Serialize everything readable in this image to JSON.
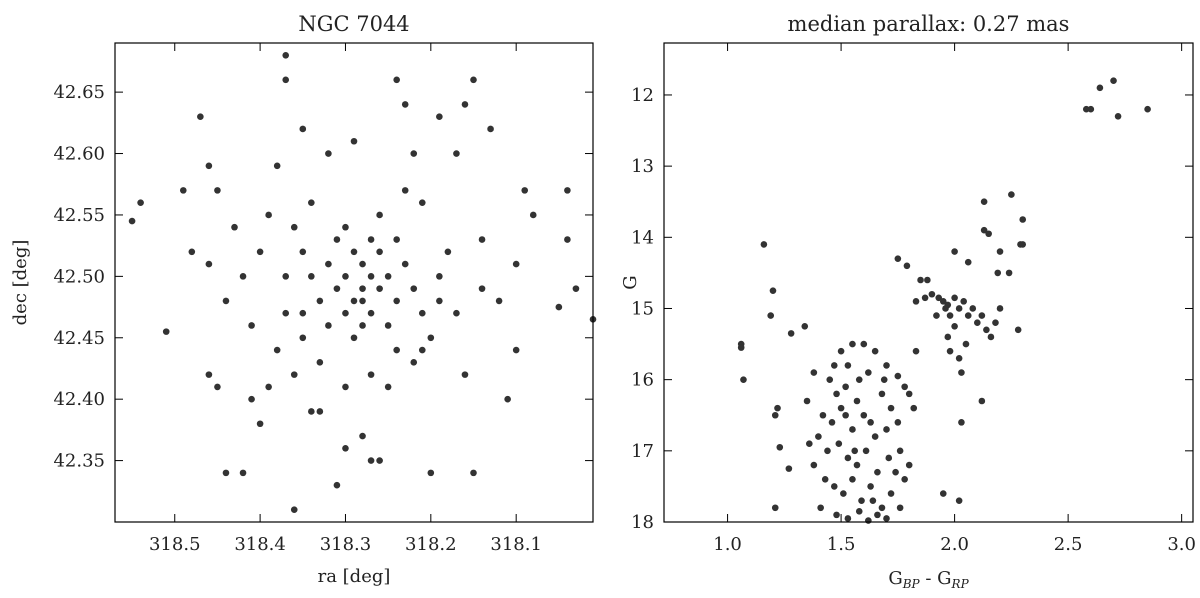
{
  "chart_data": [
    {
      "type": "scatter",
      "title": "NGC 7044",
      "xlabel": "ra [deg]",
      "ylabel": "dec [deg]",
      "color": "#333333",
      "xlim": [
        318.57,
        318.01
      ],
      "ylim": [
        42.3,
        42.69
      ],
      "xticks": [
        318.5,
        318.4,
        318.3,
        318.2,
        318.1
      ],
      "yticks": [
        42.35,
        {
          "value": 42.4,
          "label": "42.40"
        },
        42.45,
        {
          "value": 42.5,
          "label": "42.50"
        },
        42.55,
        {
          "value": 42.6,
          "label": "42.60"
        },
        42.65
      ],
      "x": [
        318.28,
        318.27,
        318.29,
        318.3,
        318.26,
        318.28,
        318.31,
        318.27,
        318.25,
        318.29,
        318.32,
        318.3,
        318.26,
        318.24,
        318.33,
        318.28,
        318.27,
        318.31,
        318.23,
        318.34,
        318.22,
        318.29,
        318.25,
        318.3,
        318.35,
        318.21,
        318.26,
        318.32,
        318.24,
        318.28,
        318.54,
        318.55,
        318.51,
        318.47,
        318.46,
        318.49,
        318.48,
        318.45,
        318.46,
        318.44,
        318.43,
        318.46,
        318.45,
        318.44,
        318.42,
        318.41,
        318.4,
        318.39,
        318.38,
        318.37,
        318.37,
        318.36,
        318.35,
        318.34,
        318.33,
        318.32,
        318.31,
        318.3,
        318.29,
        318.28,
        318.27,
        318.26,
        318.25,
        318.24,
        318.23,
        318.22,
        318.21,
        318.2,
        318.19,
        318.18,
        318.17,
        318.16,
        318.15,
        318.15,
        318.14,
        318.13,
        318.12,
        318.11,
        318.1,
        318.1,
        318.09,
        318.08,
        318.04,
        318.04,
        318.05,
        318.03,
        318.01,
        318.38,
        318.37,
        318.36,
        318.35,
        318.33,
        318.22,
        318.2,
        318.19,
        318.17,
        318.16,
        318.14,
        318.4,
        318.41,
        318.39,
        318.21,
        318.23,
        318.34,
        318.36,
        318.27,
        318.3,
        318.24,
        318.42,
        318.35,
        318.19,
        318.37
      ],
      "values": [
        42.49,
        42.5,
        42.48,
        42.5,
        42.49,
        42.51,
        42.49,
        42.47,
        42.5,
        42.52,
        42.51,
        42.47,
        42.52,
        42.48,
        42.48,
        42.46,
        42.53,
        42.53,
        42.51,
        42.5,
        42.49,
        42.45,
        42.46,
        42.54,
        42.52,
        42.47,
        42.55,
        42.46,
        42.53,
        42.48,
        42.56,
        42.545,
        42.455,
        42.63,
        42.59,
        42.57,
        42.52,
        42.57,
        42.51,
        42.48,
        42.54,
        42.42,
        42.41,
        42.34,
        42.34,
        42.4,
        42.38,
        42.55,
        42.59,
        42.68,
        42.66,
        42.31,
        42.62,
        42.39,
        42.39,
        42.6,
        42.33,
        42.36,
        42.61,
        42.37,
        42.35,
        42.35,
        42.41,
        42.66,
        42.64,
        42.6,
        42.44,
        42.34,
        42.63,
        42.52,
        42.6,
        42.64,
        42.66,
        42.34,
        42.53,
        42.62,
        42.48,
        42.4,
        42.51,
        42.44,
        42.57,
        42.55,
        42.57,
        42.53,
        42.475,
        42.49,
        42.465,
        42.44,
        42.47,
        42.42,
        42.45,
        42.43,
        42.43,
        42.45,
        42.48,
        42.47,
        42.42,
        42.49,
        42.52,
        42.46,
        42.41,
        42.56,
        42.57,
        42.56,
        42.54,
        42.42,
        42.41,
        42.44,
        42.5,
        42.47,
        42.5,
        42.5
      ]
    },
    {
      "type": "scatter",
      "title": "median parallax: 0.27 mas",
      "xlabel": [
        "G",
        "BP",
        " - G",
        "RP"
      ],
      "ylabel": "G",
      "color": "#333333",
      "xlim": [
        0.72,
        3.05
      ],
      "ylim": [
        18,
        11.27
      ],
      "xticks": [
        {
          "value": 1,
          "label": "1.0"
        },
        1.5,
        {
          "value": 2,
          "label": "2.0"
        },
        2.5,
        {
          "value": 3,
          "label": "3.0"
        }
      ],
      "yticks": [
        12,
        13,
        14,
        15,
        16,
        17,
        18
      ],
      "x": [
        2.58,
        2.6,
        2.64,
        2.7,
        2.72,
        2.85,
        2.13,
        2.25,
        2.3,
        2.13,
        2.15,
        2.29,
        2.3,
        2.2,
        2.0,
        2.06,
        2.19,
        2.24,
        1.75,
        1.79,
        1.85,
        1.88,
        1.9,
        1.93,
        1.95,
        1.97,
        2.0,
        2.02,
        2.04,
        2.06,
        1.98,
        1.96,
        2.08,
        2.1,
        2.12,
        2.14,
        2.16,
        1.92,
        2.0,
        2.05,
        2.18,
        2.2,
        2.28,
        1.83,
        1.87,
        2.02,
        2.03,
        1.97,
        1.98,
        2.12,
        2.03,
        1.95,
        2.02,
        1.83,
        1.8,
        1.82,
        1.06,
        1.06,
        1.07,
        1.16,
        1.2,
        1.19,
        1.28,
        1.34,
        1.22,
        1.21,
        1.23,
        1.27,
        1.21,
        1.5,
        1.55,
        1.6,
        1.65,
        1.7,
        1.75,
        1.78,
        1.45,
        1.48,
        1.52,
        1.58,
        1.62,
        1.68,
        1.72,
        1.42,
        1.46,
        1.5,
        1.55,
        1.6,
        1.65,
        1.7,
        1.75,
        1.4,
        1.44,
        1.49,
        1.53,
        1.57,
        1.61,
        1.66,
        1.71,
        1.76,
        1.78,
        1.43,
        1.47,
        1.51,
        1.55,
        1.59,
        1.63,
        1.68,
        1.72,
        1.76,
        1.48,
        1.53,
        1.58,
        1.62,
        1.66,
        1.7,
        1.38,
        1.36,
        1.35,
        1.38,
        1.47,
        1.53,
        1.57,
        1.63,
        1.69,
        1.56,
        1.52,
        1.64,
        1.8,
        1.41,
        1.74
      ],
      "values": [
        12.2,
        12.2,
        11.9,
        11.8,
        12.3,
        12.2,
        13.5,
        13.4,
        13.75,
        13.9,
        13.95,
        14.1,
        14.1,
        14.2,
        14.2,
        14.35,
        14.5,
        14.5,
        14.3,
        14.4,
        14.6,
        14.6,
        14.8,
        14.85,
        14.9,
        14.95,
        14.85,
        15.0,
        14.9,
        15.1,
        15.1,
        15.0,
        15.0,
        15.2,
        15.1,
        15.3,
        15.4,
        15.1,
        15.25,
        15.5,
        15.2,
        15.0,
        15.3,
        14.9,
        14.85,
        15.7,
        15.9,
        15.4,
        15.6,
        16.3,
        16.6,
        17.6,
        17.7,
        15.6,
        16.2,
        16.4,
        15.5,
        15.55,
        16.0,
        14.1,
        14.75,
        15.1,
        15.35,
        15.25,
        16.4,
        16.5,
        16.95,
        17.25,
        17.8,
        15.6,
        15.5,
        15.5,
        15.6,
        15.8,
        15.95,
        16.1,
        16.0,
        16.2,
        16.1,
        16.0,
        15.9,
        16.2,
        16.4,
        16.5,
        16.6,
        16.4,
        16.7,
        16.5,
        16.8,
        16.7,
        16.6,
        16.8,
        17.0,
        16.9,
        17.1,
        17.2,
        17.0,
        17.3,
        17.1,
        17.0,
        17.4,
        17.4,
        17.5,
        17.6,
        17.4,
        17.7,
        17.5,
        17.8,
        17.6,
        17.8,
        17.9,
        17.95,
        17.85,
        17.98,
        17.9,
        17.95,
        17.2,
        16.9,
        16.3,
        15.9,
        15.8,
        15.8,
        16.3,
        16.6,
        16.0,
        17.0,
        16.5,
        17.7,
        17.2,
        17.8,
        17.3
      ]
    }
  ]
}
